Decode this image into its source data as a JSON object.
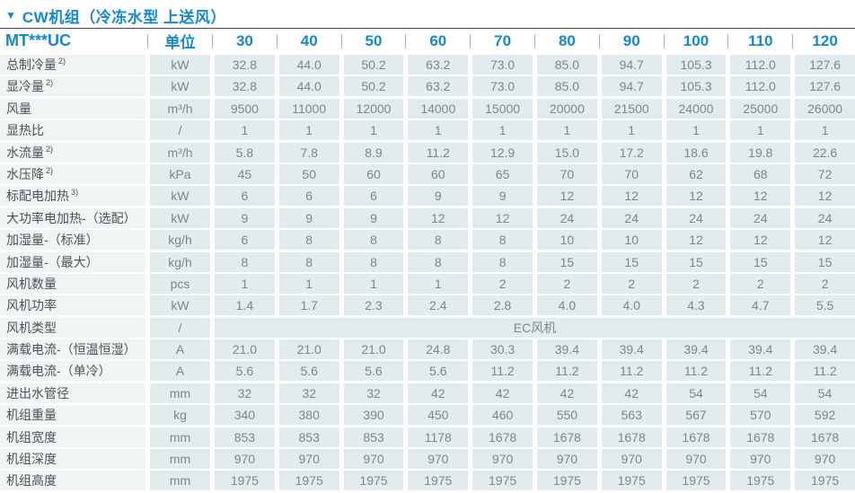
{
  "title": {
    "marker": "▼",
    "text": "CW机组（冷冻水型 上送风）"
  },
  "colors": {
    "accent_blue": "#1589ce",
    "divider": "#474747",
    "cell_bg": "#e3ecec",
    "label_bg": "#eff4f4",
    "label_text": "#4d5355",
    "value_text": "#7e8587"
  },
  "table": {
    "model": "MT***UC",
    "unit_header": "单位",
    "columns": [
      "30",
      "40",
      "50",
      "60",
      "70",
      "80",
      "90",
      "100",
      "110",
      "120"
    ],
    "rows": [
      {
        "label": "总制冷量",
        "sup": "2)",
        "unit": "kW",
        "values": [
          "32.8",
          "44.0",
          "50.2",
          "63.2",
          "73.0",
          "85.0",
          "94.7",
          "105.3",
          "112.0",
          "127.6"
        ]
      },
      {
        "label": "显冷量",
        "sup": "2)",
        "unit": "kW",
        "values": [
          "32.8",
          "44.0",
          "50.2",
          "63.2",
          "73.0",
          "85.0",
          "94.7",
          "105.3",
          "112.0",
          "127.6"
        ]
      },
      {
        "label": "风量",
        "unit": "m³/h",
        "values": [
          "9500",
          "11000",
          "12000",
          "14000",
          "15000",
          "20000",
          "21500",
          "24000",
          "25000",
          "26000"
        ]
      },
      {
        "label": "显热比",
        "unit": "/",
        "values": [
          "1",
          "1",
          "1",
          "1",
          "1",
          "1",
          "1",
          "1",
          "1",
          "1"
        ]
      },
      {
        "label": "水流量",
        "sup": "2)",
        "unit": "m³/h",
        "values": [
          "5.8",
          "7.8",
          "8.9",
          "11.2",
          "12.9",
          "15.0",
          "17.2",
          "18.6",
          "19.8",
          "22.6"
        ]
      },
      {
        "label": "水压降",
        "sup": "2)",
        "unit": "kPa",
        "values": [
          "45",
          "50",
          "60",
          "60",
          "65",
          "70",
          "70",
          "62",
          "68",
          "72"
        ]
      },
      {
        "label": "标配电加热",
        "sup": "3)",
        "unit": "kW",
        "values": [
          "6",
          "6",
          "6",
          "9",
          "9",
          "12",
          "12",
          "12",
          "12",
          "12"
        ]
      },
      {
        "label": "大功率电加热-（选配）",
        "unit": "kW",
        "values": [
          "9",
          "9",
          "9",
          "12",
          "12",
          "24",
          "24",
          "24",
          "24",
          "24"
        ]
      },
      {
        "label": "加湿量-（标准）",
        "unit": "kg/h",
        "values": [
          "6",
          "8",
          "8",
          "8",
          "8",
          "10",
          "10",
          "12",
          "12",
          "12"
        ]
      },
      {
        "label": "加湿量-（最大）",
        "unit": "kg/h",
        "values": [
          "8",
          "8",
          "8",
          "8",
          "8",
          "15",
          "15",
          "15",
          "15",
          "15"
        ]
      },
      {
        "label": "风机数量",
        "unit": "pcs",
        "values": [
          "1",
          "1",
          "1",
          "1",
          "2",
          "2",
          "2",
          "2",
          "2",
          "2"
        ]
      },
      {
        "label": "风机功率",
        "unit": "kW",
        "values": [
          "1.4",
          "1.7",
          "2.3",
          "2.4",
          "2.8",
          "4.0",
          "4.0",
          "4.3",
          "4.7",
          "5.5"
        ]
      },
      {
        "label": "风机类型",
        "unit": "/",
        "merged": "EC风机"
      },
      {
        "label": "满载电流-（恒温恒湿）",
        "unit": "A",
        "values": [
          "21.0",
          "21.0",
          "21.0",
          "24.8",
          "30.3",
          "39.4",
          "39.4",
          "39.4",
          "39.4",
          "39.4"
        ]
      },
      {
        "label": "满载电流-（单冷）",
        "unit": "A",
        "values": [
          "5.6",
          "5.6",
          "5.6",
          "5.6",
          "11.2",
          "11.2",
          "11.2",
          "11.2",
          "11.2",
          "11.2"
        ]
      },
      {
        "label": "进出水管径",
        "unit": "mm",
        "values": [
          "32",
          "32",
          "32",
          "42",
          "42",
          "42",
          "42",
          "54",
          "54",
          "54"
        ]
      },
      {
        "label": "机组重量",
        "unit": "kg",
        "values": [
          "340",
          "380",
          "390",
          "450",
          "460",
          "550",
          "563",
          "567",
          "570",
          "592"
        ]
      },
      {
        "label": "机组宽度",
        "unit": "mm",
        "values": [
          "853",
          "853",
          "853",
          "1178",
          "1678",
          "1678",
          "1678",
          "1678",
          "1678",
          "1678"
        ]
      },
      {
        "label": "机组深度",
        "unit": "mm",
        "values": [
          "970",
          "970",
          "970",
          "970",
          "970",
          "970",
          "970",
          "970",
          "970",
          "970"
        ]
      },
      {
        "label": "机组高度",
        "unit": "mm",
        "values": [
          "1975",
          "1975",
          "1975",
          "1975",
          "1975",
          "1975",
          "1975",
          "1975",
          "1975",
          "1975"
        ]
      }
    ]
  }
}
